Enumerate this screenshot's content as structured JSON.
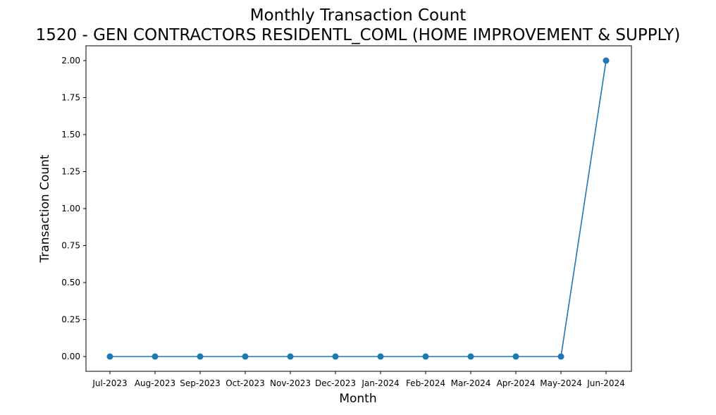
{
  "chart_data": {
    "type": "line",
    "title": "Monthly Transaction Count",
    "subtitle": "1520 - GEN CONTRACTORS RESIDENTL_COML (HOME IMPROVEMENT & SUPPLY)",
    "xlabel": "Month",
    "ylabel": "Transaction Count",
    "categories": [
      "Jul-2023",
      "Aug-2023",
      "Sep-2023",
      "Oct-2023",
      "Nov-2023",
      "Dec-2023",
      "Jan-2024",
      "Feb-2024",
      "Mar-2024",
      "Apr-2024",
      "May-2024",
      "Jun-2024"
    ],
    "series": [
      {
        "values": [
          0,
          0,
          0,
          0,
          0,
          0,
          0,
          0,
          0,
          0,
          0,
          2
        ],
        "color": "#1f77b4",
        "marker": "circle"
      }
    ],
    "ylim": [
      -0.1,
      2.1
    ],
    "yticks": [
      0.0,
      0.25,
      0.5,
      0.75,
      1.0,
      1.25,
      1.5,
      1.75,
      2.0
    ],
    "ytick_labels": [
      "0.00",
      "0.25",
      "0.50",
      "0.75",
      "1.00",
      "1.25",
      "1.50",
      "1.75",
      "2.00"
    ],
    "grid": false,
    "legend": "none"
  }
}
